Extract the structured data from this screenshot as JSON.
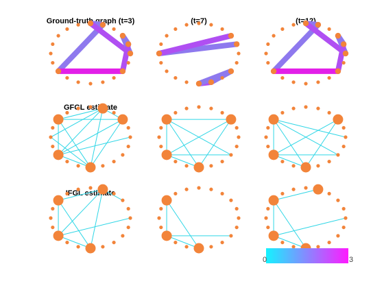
{
  "colors": {
    "node": "#f2843a",
    "estimate_edge": "#2fd6e6",
    "truth_low": "#8e79ee",
    "truth_mid": "#b04ff2",
    "truth_high": "#e21fe8",
    "colorbar_start": "#14f3ff",
    "colorbar_end": "#ff1aff"
  },
  "node_count": 20,
  "panels": [
    {
      "id": "p11",
      "title": "Ground-truth graph (t=3)",
      "kind": "truth",
      "big_nodes": [
        0,
        1,
        3,
        4,
        5,
        7,
        13
      ],
      "edges": [
        [
          13,
          1,
          0
        ],
        [
          1,
          0,
          0
        ],
        [
          0,
          5,
          1
        ],
        [
          5,
          3,
          0
        ],
        [
          3,
          4,
          0
        ],
        [
          4,
          7,
          1
        ],
        [
          7,
          13,
          2
        ]
      ]
    },
    {
      "id": "p12",
      "title": "(t=7)",
      "kind": "truth",
      "big_nodes": [
        3,
        4,
        7,
        9,
        10,
        15
      ],
      "edges": [
        [
          15,
          4,
          0
        ],
        [
          15,
          3,
          1
        ],
        [
          7,
          9,
          0
        ],
        [
          9,
          10,
          1
        ],
        [
          10,
          7,
          0
        ]
      ]
    },
    {
      "id": "p13",
      "title": "(t=12)",
      "kind": "truth",
      "big_nodes": [
        0,
        1,
        3,
        4,
        5,
        7,
        13
      ],
      "edges": [
        [
          13,
          1,
          0
        ],
        [
          1,
          0,
          0
        ],
        [
          0,
          5,
          1
        ],
        [
          5,
          3,
          0
        ],
        [
          3,
          4,
          0
        ],
        [
          4,
          7,
          1
        ],
        [
          7,
          13,
          2
        ]
      ]
    },
    {
      "id": "p21",
      "title": "GFGL estimate",
      "kind": "estimate",
      "big_nodes": [
        1,
        3,
        10,
        13,
        17
      ],
      "edges": [
        [
          17,
          1
        ],
        [
          17,
          3
        ],
        [
          17,
          10
        ],
        [
          17,
          13
        ],
        [
          1,
          3
        ],
        [
          1,
          10
        ],
        [
          1,
          13
        ],
        [
          1,
          15
        ],
        [
          3,
          10
        ],
        [
          3,
          13
        ],
        [
          10,
          13
        ],
        [
          10,
          15
        ],
        [
          13,
          5
        ]
      ]
    },
    {
      "id": "p22",
      "title": "",
      "kind": "estimate",
      "big_nodes": [
        3,
        10,
        13,
        17
      ],
      "edges": [
        [
          17,
          13
        ],
        [
          17,
          10
        ],
        [
          17,
          7
        ],
        [
          17,
          3
        ],
        [
          3,
          13
        ],
        [
          3,
          10
        ],
        [
          10,
          13
        ],
        [
          13,
          7
        ]
      ]
    },
    {
      "id": "p23",
      "title": "",
      "kind": "estimate",
      "big_nodes": [
        3,
        10,
        13,
        17
      ],
      "edges": [
        [
          17,
          13
        ],
        [
          17,
          10
        ],
        [
          17,
          7
        ],
        [
          3,
          13
        ],
        [
          3,
          10
        ],
        [
          10,
          13
        ],
        [
          13,
          7
        ],
        [
          17,
          5
        ]
      ]
    },
    {
      "id": "p31",
      "title": "IFGL estimate",
      "kind": "estimate",
      "big_nodes": [
        1,
        10,
        13,
        17
      ],
      "edges": [
        [
          17,
          1
        ],
        [
          17,
          13
        ],
        [
          17,
          10
        ],
        [
          1,
          13
        ],
        [
          1,
          10
        ],
        [
          13,
          5
        ],
        [
          10,
          13
        ],
        [
          1,
          3
        ]
      ]
    },
    {
      "id": "p32",
      "title": "",
      "kind": "estimate",
      "big_nodes": [
        10,
        13,
        17
      ],
      "edges": [
        [
          17,
          13
        ],
        [
          17,
          10
        ],
        [
          10,
          13
        ],
        [
          13,
          7
        ]
      ]
    },
    {
      "id": "p33",
      "title": "",
      "kind": "estimate",
      "big_nodes": [
        1,
        10,
        13,
        17
      ],
      "edges": [
        [
          17,
          1
        ],
        [
          17,
          13
        ],
        [
          17,
          10
        ],
        [
          10,
          13
        ],
        [
          13,
          5
        ]
      ]
    }
  ],
  "colorbar": {
    "ticks": [
      {
        "value": 0,
        "label": "0"
      },
      {
        "value": 3,
        "label": "3"
      }
    ]
  }
}
